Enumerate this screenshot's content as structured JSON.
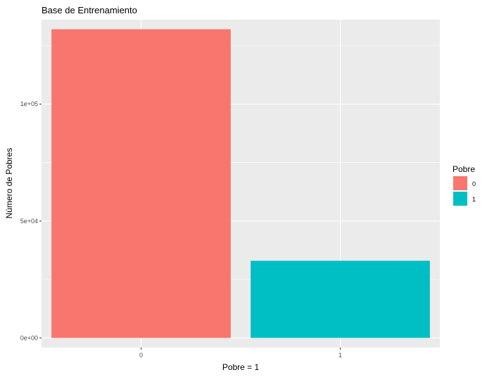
{
  "chart_data": {
    "type": "bar",
    "title": "Base de Entrenamiento",
    "xlabel": "Pobre = 1",
    "ylabel": "Número de Pobres",
    "categories": [
      "0",
      "1"
    ],
    "values": [
      132000,
      33000
    ],
    "colors": [
      "#F8766D",
      "#00BFC4"
    ],
    "ylim": [
      -4100,
      136100
    ],
    "yticks": [
      0,
      50000,
      100000
    ],
    "ytick_labels": [
      "0e+00",
      "5e+04",
      "1e+05"
    ],
    "grid": true,
    "panel_background": "#EBEBEB",
    "grid_color": "#FFFFFF",
    "legend": {
      "title": "Pobre",
      "placement": "right",
      "entries": [
        "0",
        "1"
      ]
    }
  }
}
